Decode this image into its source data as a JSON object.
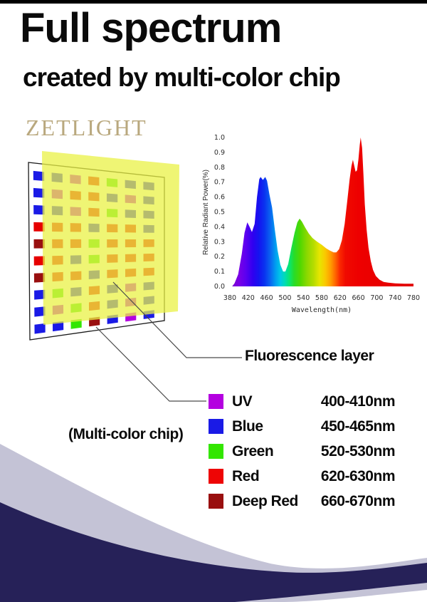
{
  "page": {
    "top_bar_color": "#000000",
    "background": "#ffffff"
  },
  "header": {
    "title": "Full spectrum",
    "subtitle": "created by multi-color chip"
  },
  "logo": {
    "text": "ZETLIGHT",
    "color": "#b9a87e"
  },
  "labels": {
    "fluorescence_layer": "Fluorescence layer",
    "multicolor_chip": "(Multi-color chip)"
  },
  "legend": {
    "items": [
      {
        "key": "uv",
        "name": "UV",
        "range": "400-410nm",
        "color": "#b400e0"
      },
      {
        "key": "blue",
        "name": "Blue",
        "range": "450-465nm",
        "color": "#1a1ae6"
      },
      {
        "key": "green",
        "name": "Green",
        "range": "520-530nm",
        "color": "#33e600"
      },
      {
        "key": "red",
        "name": "Red",
        "range": "620-630nm",
        "color": "#ee0505"
      },
      {
        "key": "deep-red",
        "name": "Deep Red",
        "range": "660-670nm",
        "color": "#990f0f"
      }
    ]
  },
  "chip": {
    "board_stroke": "#1a1a1a",
    "board_fill": "#ffffff",
    "layer_color": "#e9f146",
    "layer_opacity": 0.75,
    "pointer_color": "#4a4a4a",
    "palette": {
      "B": "#1a1ae6",
      "G": "#33e600",
      "R": "#e60000",
      "U": "#b400e0",
      "D": "#990f0f"
    },
    "matrix": [
      [
        "B",
        "B",
        "U",
        "R",
        "G",
        "B",
        "B"
      ],
      [
        "B",
        "U",
        "R",
        "R",
        "B",
        "U",
        "B"
      ],
      [
        "B",
        "B",
        "U",
        "R",
        "G",
        "B",
        "B"
      ],
      [
        "R",
        "R",
        "R",
        "B",
        "R",
        "R",
        "B"
      ],
      [
        "D",
        "R",
        "R",
        "G",
        "R",
        "R",
        "R"
      ],
      [
        "R",
        "R",
        "B",
        "G",
        "R",
        "R",
        "R"
      ],
      [
        "D",
        "R",
        "R",
        "B",
        "R",
        "R",
        "R"
      ],
      [
        "B",
        "G",
        "B",
        "R",
        "B",
        "U",
        "B"
      ],
      [
        "B",
        "U",
        "G",
        "R",
        "B",
        "U",
        "B"
      ],
      [
        "B",
        "B",
        "G",
        "D",
        "B",
        "U",
        "B"
      ]
    ]
  },
  "wave": {
    "gray": "#c4c3d6",
    "navy": "#262158"
  },
  "chart_data": {
    "type": "area",
    "title": "",
    "xlabel": "Wavelength(nm)",
    "ylabel": "Relative Radiant Power(%)",
    "xlim": [
      380,
      780
    ],
    "ylim": [
      0.0,
      1.0
    ],
    "x_ticks": [
      "380",
      "420",
      "460",
      "500",
      "540",
      "580",
      "620",
      "660",
      "700",
      "740",
      "780"
    ],
    "y_ticks": [
      "1.0",
      "0.9",
      "0.8",
      "0.7",
      "0.6",
      "0.5",
      "0.4",
      "0.3",
      "0.2",
      "0.1",
      "0.0"
    ],
    "grid": false,
    "legend_position": "none",
    "points": [
      [
        385,
        0.0
      ],
      [
        390,
        0.02
      ],
      [
        398,
        0.08
      ],
      [
        406,
        0.22
      ],
      [
        412,
        0.36
      ],
      [
        418,
        0.43
      ],
      [
        423,
        0.4
      ],
      [
        428,
        0.365
      ],
      [
        434,
        0.42
      ],
      [
        439,
        0.6
      ],
      [
        444,
        0.72
      ],
      [
        447,
        0.735
      ],
      [
        452,
        0.715
      ],
      [
        457,
        0.735
      ],
      [
        461,
        0.71
      ],
      [
        466,
        0.62
      ],
      [
        472,
        0.53
      ],
      [
        478,
        0.38
      ],
      [
        484,
        0.24
      ],
      [
        490,
        0.145
      ],
      [
        496,
        0.1
      ],
      [
        501,
        0.1
      ],
      [
        507,
        0.15
      ],
      [
        514,
        0.26
      ],
      [
        521,
        0.36
      ],
      [
        527,
        0.43
      ],
      [
        532,
        0.455
      ],
      [
        537,
        0.435
      ],
      [
        544,
        0.395
      ],
      [
        552,
        0.355
      ],
      [
        560,
        0.325
      ],
      [
        570,
        0.3
      ],
      [
        580,
        0.28
      ],
      [
        590,
        0.255
      ],
      [
        598,
        0.24
      ],
      [
        606,
        0.228
      ],
      [
        612,
        0.228
      ],
      [
        618,
        0.25
      ],
      [
        624,
        0.31
      ],
      [
        630,
        0.42
      ],
      [
        636,
        0.58
      ],
      [
        641,
        0.72
      ],
      [
        645,
        0.81
      ],
      [
        648,
        0.85
      ],
      [
        651,
        0.81
      ],
      [
        654,
        0.77
      ],
      [
        657,
        0.78
      ],
      [
        660,
        0.85
      ],
      [
        663,
        0.95
      ],
      [
        665,
        1.0
      ],
      [
        668,
        0.93
      ],
      [
        671,
        0.75
      ],
      [
        674,
        0.55
      ],
      [
        678,
        0.38
      ],
      [
        682,
        0.26
      ],
      [
        687,
        0.17
      ],
      [
        692,
        0.11
      ],
      [
        698,
        0.07
      ],
      [
        706,
        0.045
      ],
      [
        715,
        0.03
      ],
      [
        725,
        0.025
      ],
      [
        740,
        0.02
      ],
      [
        760,
        0.018
      ],
      [
        780,
        0.018
      ]
    ],
    "gradient_stops": [
      [
        380,
        "#7b00c8"
      ],
      [
        400,
        "#7a00e6"
      ],
      [
        415,
        "#5a00f0"
      ],
      [
        430,
        "#3000f0"
      ],
      [
        443,
        "#1414f0"
      ],
      [
        455,
        "#0a32f0"
      ],
      [
        468,
        "#0a64f0"
      ],
      [
        480,
        "#00a0f0"
      ],
      [
        490,
        "#00c8e6"
      ],
      [
        500,
        "#00dcb4"
      ],
      [
        510,
        "#0ae66e"
      ],
      [
        520,
        "#28dc28"
      ],
      [
        533,
        "#50d800"
      ],
      [
        548,
        "#8cd800"
      ],
      [
        562,
        "#b4dc00"
      ],
      [
        575,
        "#e6e600"
      ],
      [
        588,
        "#fac800"
      ],
      [
        600,
        "#ff9b00"
      ],
      [
        610,
        "#ff6400"
      ],
      [
        620,
        "#fa2800"
      ],
      [
        632,
        "#f00a00"
      ],
      [
        660,
        "#ee0000"
      ],
      [
        780,
        "#e10000"
      ]
    ]
  }
}
